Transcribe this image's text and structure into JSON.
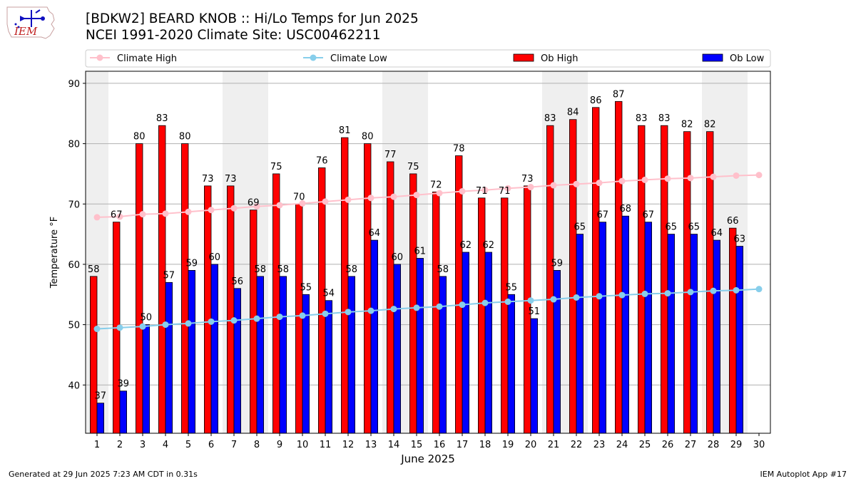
{
  "title_line1": "[BDKW2] BEARD KNOB :: Hi/Lo Temps for Jun 2025",
  "title_line2": "NCEI 1991-2020 Climate Site: USC00462211",
  "logo_text": "IEM",
  "footer_left": "Generated at 29 Jun 2025 7:23 AM CDT in 0.31s",
  "footer_right": "IEM Autoplot App #17",
  "chart_data": {
    "type": "bar",
    "xlabel": "June 2025",
    "ylabel": "Temperature °F",
    "ylim": [
      32,
      92
    ],
    "xlim": [
      0.5,
      30.5
    ],
    "yticks": [
      40,
      50,
      60,
      70,
      80,
      90
    ],
    "grid": true,
    "legend_placement": "top",
    "categories": [
      1,
      2,
      3,
      4,
      5,
      6,
      7,
      8,
      9,
      10,
      11,
      12,
      13,
      14,
      15,
      16,
      17,
      18,
      19,
      20,
      21,
      22,
      23,
      24,
      25,
      26,
      27,
      28,
      29,
      30
    ],
    "weekend_days": [
      1,
      7,
      8,
      14,
      15,
      21,
      22,
      28,
      29
    ],
    "series": [
      {
        "name": "Climate High",
        "kind": "line",
        "color": "#ffc0cb",
        "values": [
          67.8,
          67.9,
          68.3,
          68.4,
          68.7,
          69.0,
          69.3,
          69.6,
          69.8,
          70.1,
          70.4,
          70.7,
          71.0,
          71.2,
          71.5,
          71.8,
          72.1,
          72.3,
          72.6,
          72.8,
          73.1,
          73.3,
          73.5,
          73.8,
          74.0,
          74.2,
          74.3,
          74.5,
          74.7,
          74.8
        ]
      },
      {
        "name": "Climate Low",
        "kind": "line",
        "color": "#87ceeb",
        "values": [
          49.3,
          49.5,
          49.7,
          50.0,
          50.2,
          50.5,
          50.7,
          51.0,
          51.3,
          51.5,
          51.8,
          52.1,
          52.3,
          52.6,
          52.8,
          53.0,
          53.3,
          53.6,
          53.8,
          54.0,
          54.2,
          54.5,
          54.7,
          54.9,
          55.1,
          55.2,
          55.4,
          55.6,
          55.7,
          55.9
        ]
      },
      {
        "name": "Ob High",
        "kind": "bar",
        "color": "#ff0000",
        "values": [
          58,
          67,
          80,
          83,
          80,
          73,
          73,
          69,
          75,
          70,
          76,
          81,
          80,
          77,
          75,
          72,
          78,
          71,
          71,
          73,
          83,
          84,
          86,
          87,
          83,
          83,
          82,
          82,
          66,
          null
        ]
      },
      {
        "name": "Ob Low",
        "kind": "bar",
        "color": "#0000ff",
        "values": [
          37,
          39,
          50,
          57,
          59,
          60,
          56,
          58,
          58,
          55,
          54,
          58,
          64,
          60,
          61,
          58,
          62,
          62,
          55,
          51,
          59,
          65,
          67,
          68,
          67,
          65,
          65,
          64,
          63,
          null
        ]
      }
    ]
  }
}
